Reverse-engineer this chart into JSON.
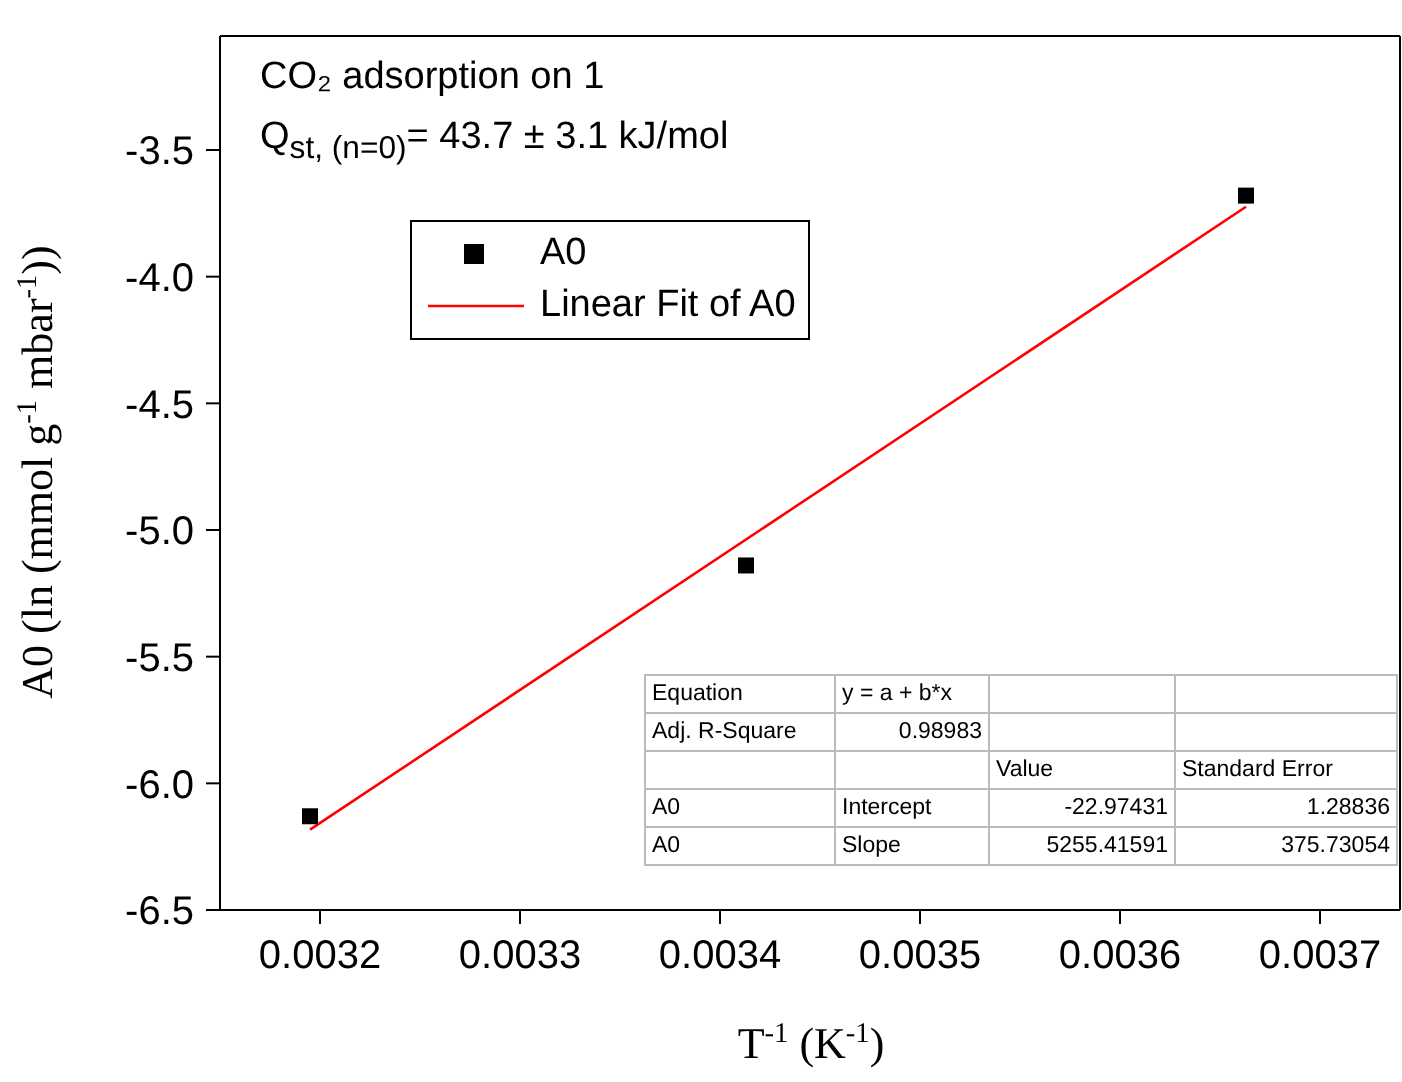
{
  "chart_data": {
    "type": "scatter",
    "title": "CO₂ adsorption on 1",
    "subtitle": "Q$_{st, (n=0)}$= 43.7 ± 3.1 kJ/mol",
    "xlabel": "T$^{-1}$ (K$^{-1}$)",
    "ylabel": "A0 (ln (mmol g$^{-1}$ mbar$^{-1}$))",
    "series": [
      {
        "name": "A0",
        "color": "#000000",
        "marker": "square",
        "x": [
          0.003195,
          0.003413,
          0.003663
        ],
        "values": [
          -6.13,
          -5.14,
          -3.68
        ]
      },
      {
        "name": "Linear Fit of A0",
        "type": "line",
        "color": "#ff0000",
        "marker": "none",
        "line_style": "solid",
        "x": [
          0.003195,
          0.003663
        ],
        "values": [
          -6.183,
          -3.724
        ]
      }
    ],
    "xlim": [
      0.00315,
      0.00374
    ],
    "xticks": [
      0.0032,
      0.0033,
      0.0034,
      0.0035,
      0.0036,
      0.0037
    ],
    "ylim": [
      -6.5,
      -3.05
    ],
    "yticks": [
      -6.5,
      {
        "value": -6,
        "label": "-6.0"
      },
      -5.5,
      {
        "value": -5,
        "label": "-5.0"
      },
      -4.5,
      {
        "value": -4,
        "label": "-4.0"
      },
      -3.5
    ],
    "legend": "top left",
    "annotations": [
      "Equation\ty = a + b*x\t\t",
      "Adj. R-Square\t0.98983\t\t",
      "\t\tValue\tStandard Error",
      "A0\tIntercept\t-22.97431\t1.28836",
      "A0\tSlope\t5255.41591\t375.73054"
    ]
  }
}
